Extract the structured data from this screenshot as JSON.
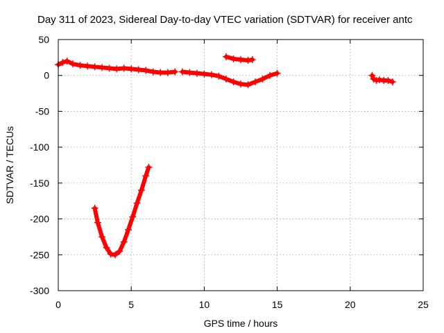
{
  "chart_data": {
    "type": "scatter",
    "title": "Day 311 of 2023, Sidereal Day-to-day VTEC variation (SDTVAR) for receiver antc",
    "xlabel": "GPS time / hours",
    "ylabel": "SDTVAR / TECUs",
    "xlim": [
      0,
      25
    ],
    "ylim": [
      -300,
      50
    ],
    "xticks": [
      0,
      5,
      10,
      15,
      20,
      25
    ],
    "yticks": [
      50,
      0,
      -50,
      -100,
      -150,
      -200,
      -250,
      -300
    ],
    "grid": true,
    "marker": "plus",
    "series_color": "#ff0000",
    "segments": [
      {
        "x": [
          0.0,
          0.3,
          0.6,
          1.0,
          1.5,
          2.0,
          2.5,
          3.0,
          3.5,
          4.0,
          4.5,
          5.0,
          5.5,
          6.0,
          6.5,
          7.0,
          7.5,
          8.0
        ],
        "y": [
          15,
          18,
          20,
          16,
          14,
          13,
          12,
          11,
          10,
          9,
          10,
          9,
          8,
          7,
          5,
          4,
          4,
          5
        ]
      },
      {
        "x": [
          8.5,
          9.0,
          9.5,
          10.0,
          10.5,
          11.0,
          11.5,
          12.0,
          12.5,
          13.0,
          13.5,
          14.0,
          14.5,
          15.0
        ],
        "y": [
          5,
          4,
          3,
          2,
          1,
          -1,
          -5,
          -9,
          -12,
          -13,
          -9,
          -5,
          0,
          3
        ]
      },
      {
        "x": [
          11.5,
          12.0,
          12.5,
          13.0,
          13.3
        ],
        "y": [
          26,
          23,
          22,
          21,
          22
        ]
      },
      {
        "x": [
          21.5,
          21.6,
          21.8,
          22.0,
          22.3,
          22.6,
          22.9
        ],
        "y": [
          0,
          -5,
          -7,
          -6,
          -7,
          -7,
          -9
        ]
      },
      {
        "x": [
          2.5,
          2.7,
          3.0,
          3.3,
          3.6,
          3.9,
          4.2,
          4.5,
          4.8,
          5.1,
          5.4,
          5.7,
          6.0,
          6.2
        ],
        "y": [
          -185,
          -205,
          -225,
          -240,
          -249,
          -250,
          -245,
          -232,
          -215,
          -197,
          -178,
          -160,
          -140,
          -128
        ]
      }
    ]
  }
}
